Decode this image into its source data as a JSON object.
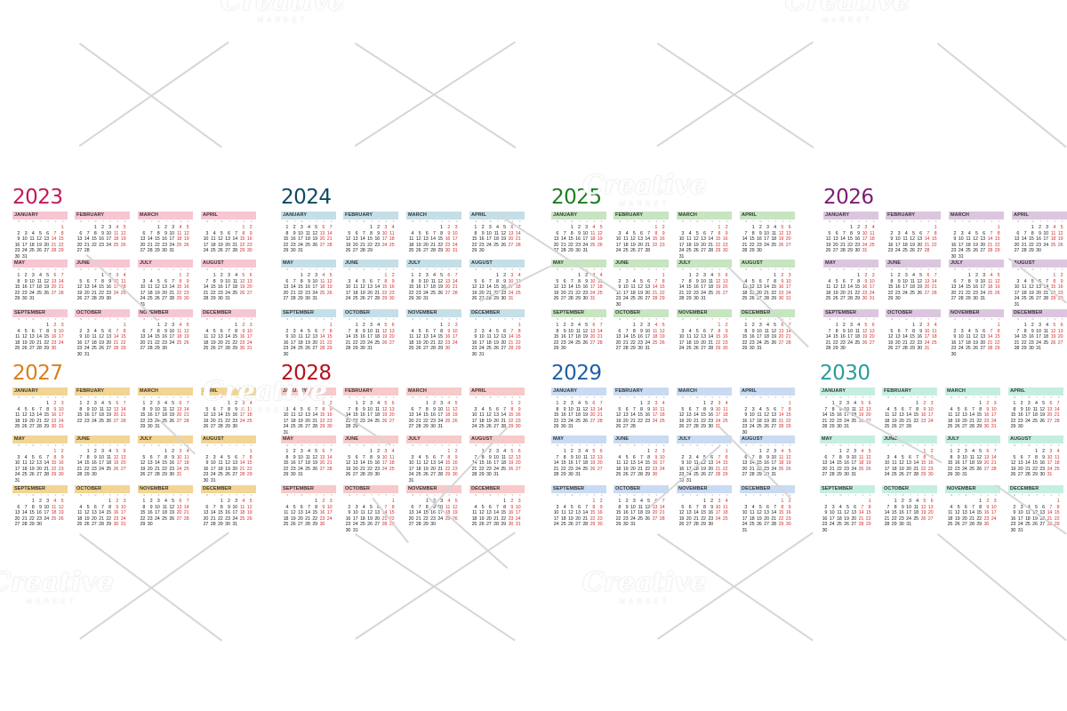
{
  "watermark": {
    "brand": "Creative",
    "subbrand": "MARKET"
  },
  "weekday_letters": [
    "M",
    "T",
    "W",
    "T",
    "F",
    "S",
    "S"
  ],
  "months": [
    "JANUARY",
    "FEBRUARY",
    "MARCH",
    "APRIL",
    "MAY",
    "JUNE",
    "JULY",
    "AUGUST",
    "SEPTEMBER",
    "OCTOBER",
    "NOVEMBER",
    "DECEMBER"
  ],
  "years": [
    {
      "year": "2023",
      "accent": "#c2185b",
      "band": "#f7c6d3"
    },
    {
      "year": "2024",
      "accent": "#0e4a62",
      "band": "#c4dfe8"
    },
    {
      "year": "2025",
      "accent": "#1e7d22",
      "band": "#c7e5c1"
    },
    {
      "year": "2026",
      "accent": "#7b1d74",
      "band": "#dcc6df"
    },
    {
      "year": "2027",
      "accent": "#d9801a",
      "band": "#f2d594"
    },
    {
      "year": "2028",
      "accent": "#b5121b",
      "band": "#f7c9c9"
    },
    {
      "year": "2029",
      "accent": "#1f5fa8",
      "band": "#c9dbf2"
    },
    {
      "year": "2030",
      "accent": "#2a9c9c",
      "band": "#c4efdf"
    }
  ]
}
